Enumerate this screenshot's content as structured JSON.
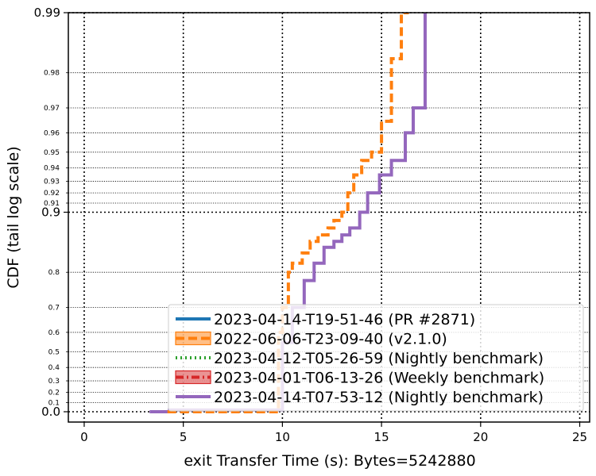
{
  "chart_data": {
    "type": "line",
    "title": "",
    "xlabel": "exit Transfer Time (s): Bytes=5242880",
    "ylabel": "CDF (tail log scale)",
    "xlim": [
      -0.8,
      25.5
    ],
    "x_ticks": [
      0,
      5,
      10,
      15,
      20,
      25
    ],
    "x_tick_labels": [
      "0",
      "5",
      "10",
      "15",
      "20",
      "25"
    ],
    "y_major_ticks": [
      0.0,
      0.9,
      0.99
    ],
    "y_major_tick_labels": [
      "0.0",
      "0.9",
      "0.99"
    ],
    "y_minor_ticks": [
      0.1,
      0.2,
      0.3,
      0.4,
      0.5,
      0.6,
      0.7,
      0.8,
      0.91,
      0.92,
      0.93,
      0.94,
      0.95,
      0.96,
      0.97,
      0.98
    ],
    "y_minor_tick_labels": [
      "0.1",
      "0.2",
      "0.3",
      "0.4",
      "0.5",
      "0.6",
      "0.7",
      "0.8",
      "0.91",
      "0.92",
      "0.93",
      "0.94",
      "0.95",
      "0.96",
      "0.97",
      "0.98"
    ],
    "grid": true,
    "legend_position": "bottom-right",
    "series": [
      {
        "name": "2023-04-14-T19-51-46 (PR #2871)",
        "color": "#1f77b4",
        "style": "solid",
        "x": [],
        "y": []
      },
      {
        "name": "2022-06-06-T23-09-40 (v2.1.0)",
        "color": "#ff7f0e",
        "style": "dashed",
        "x": [
          4.2,
          9.8,
          10.0,
          10.3,
          10.5,
          11.0,
          11.4,
          11.8,
          12.3,
          12.6,
          13.0,
          13.3,
          13.6,
          14.0,
          14.5,
          15.0,
          15.5,
          16.0,
          16.3
        ],
        "y": [
          0.0,
          0.6,
          0.7,
          0.8,
          0.82,
          0.84,
          0.86,
          0.87,
          0.88,
          0.89,
          0.9,
          0.92,
          0.935,
          0.945,
          0.95,
          0.965,
          0.983,
          0.99,
          0.99
        ]
      },
      {
        "name": "2023-04-12-T05-26-59 (Nightly benchmark)",
        "color": "#2ca02c",
        "style": "dotted",
        "x": [],
        "y": []
      },
      {
        "name": "2023-04-01-T06-13-26 (Weekly benchmark)",
        "color": "#d62728",
        "style": "dashdot",
        "x": [],
        "y": []
      },
      {
        "name": "2023-04-14-T07-53-12 (Nightly benchmark)",
        "color": "#9467bd",
        "style": "solid",
        "x": [
          3.3,
          4.3,
          10.0,
          10.5,
          11.1,
          11.6,
          12.1,
          12.6,
          13.0,
          13.4,
          13.9,
          14.3,
          14.9,
          15.5,
          16.2,
          16.6,
          17.2,
          17.2
        ],
        "y": [
          0.0,
          0.02,
          0.55,
          0.7,
          0.78,
          0.82,
          0.85,
          0.86,
          0.87,
          0.88,
          0.9,
          0.92,
          0.935,
          0.945,
          0.96,
          0.97,
          0.99,
          0.99
        ]
      }
    ]
  }
}
